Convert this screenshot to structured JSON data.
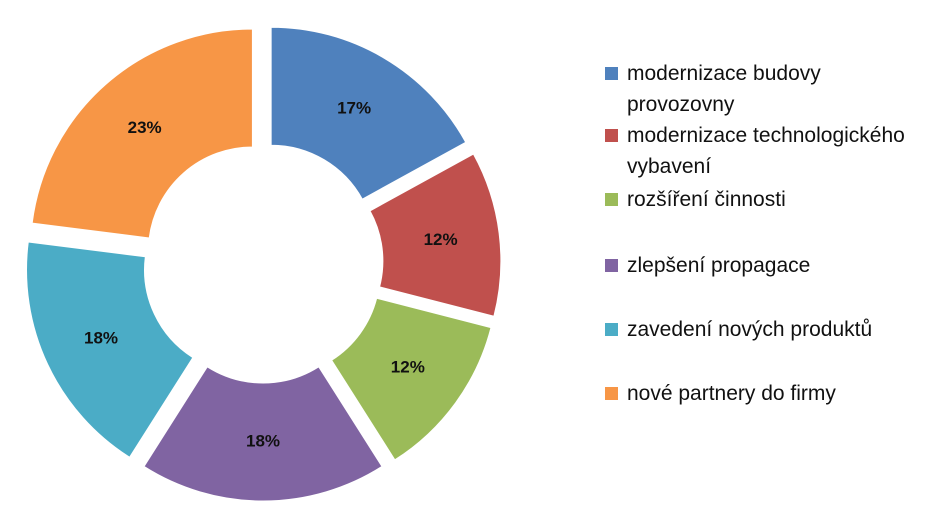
{
  "chart_data": {
    "type": "doughnut",
    "categories": [
      "modernizace budovy provozovny",
      "modernizace technologického vybavení",
      "rozšíření činnosti",
      "zlepšení propagace",
      "zavedení nových produktů",
      "nové partnery do firmy"
    ],
    "values": [
      17,
      12,
      12,
      18,
      18,
      23
    ],
    "value_labels": [
      "17%",
      "12%",
      "12%",
      "18%",
      "18%",
      "23%"
    ],
    "colors": [
      "#4f81bd",
      "#c0504d",
      "#9bbb59",
      "#8064a2",
      "#4bacc6",
      "#f79646"
    ],
    "legend": "right"
  }
}
